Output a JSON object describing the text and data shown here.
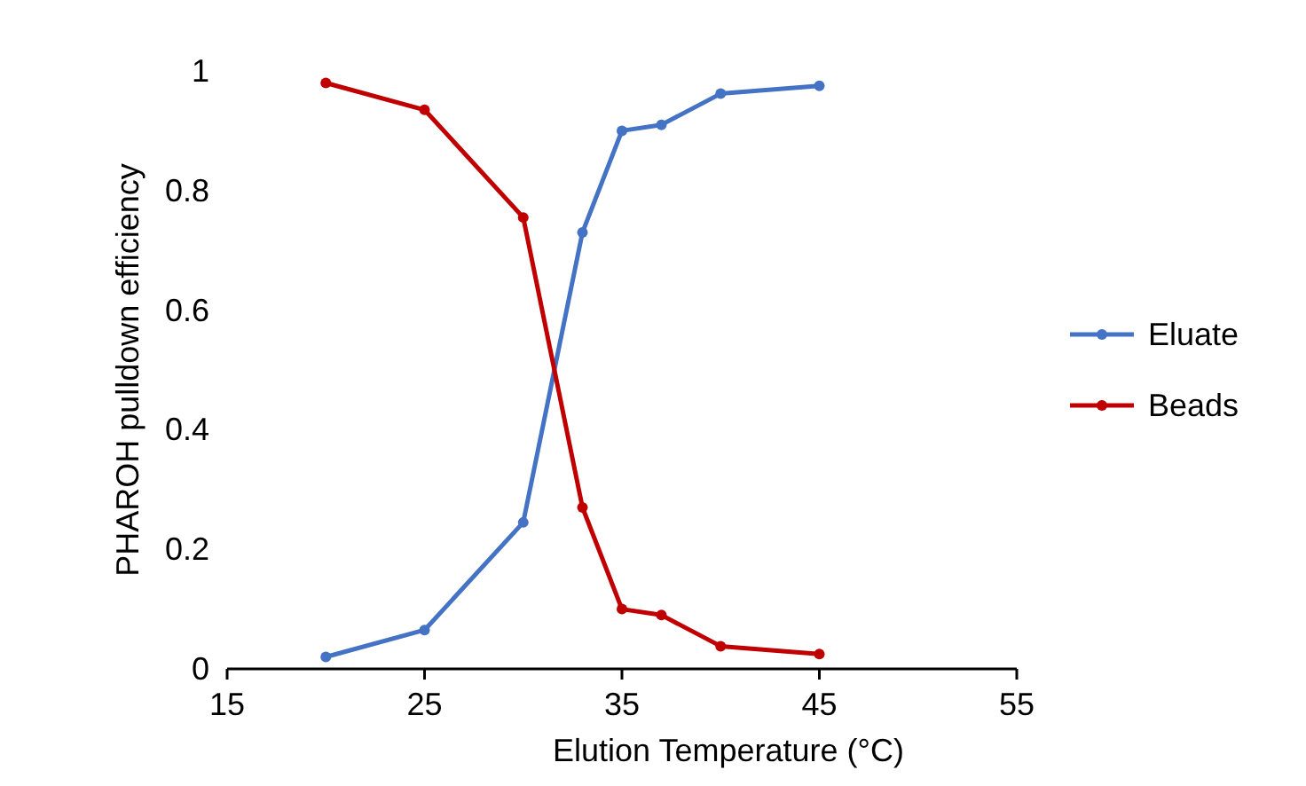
{
  "chart_data": {
    "type": "line",
    "xlabel": "Elution Temperature (°C)",
    "ylabel": "PHAROH pulldown efficiency",
    "x": [
      20,
      25,
      30,
      33,
      35,
      37,
      40,
      45
    ],
    "series": [
      {
        "name": "Eluate",
        "color": "#4472c4",
        "values": [
          0.02,
          0.065,
          0.245,
          0.73,
          0.9,
          0.91,
          0.962,
          0.975
        ]
      },
      {
        "name": "Beads",
        "color": "#c00000",
        "values": [
          0.98,
          0.935,
          0.755,
          0.27,
          0.1,
          0.09,
          0.038,
          0.025
        ]
      }
    ],
    "xlim": [
      15,
      55
    ],
    "xticks": [
      15,
      25,
      35,
      45,
      55
    ],
    "ylim": [
      0,
      1
    ],
    "yticks": [
      0,
      0.2,
      0.4,
      0.6,
      0.8,
      1
    ],
    "legend": "right",
    "marker": "circle",
    "line_style": "solid",
    "grid": false
  }
}
